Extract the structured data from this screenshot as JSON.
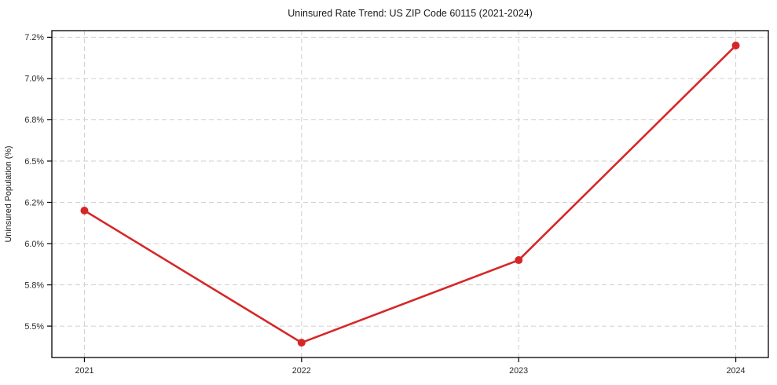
{
  "chart_data": {
    "type": "line",
    "title": "Uninsured Rate Trend: US ZIP Code 60115 (2021-2024)",
    "xlabel": "",
    "ylabel": "Uninsured Population (%)",
    "x": [
      2021,
      2022,
      2023,
      2024
    ],
    "values": [
      6.2,
      5.4,
      5.9,
      7.2
    ],
    "x_ticks": {
      "values": [
        2021,
        2022,
        2023,
        2024
      ],
      "labels": [
        "2021",
        "2022",
        "2023",
        "2024"
      ]
    },
    "y_ticks": {
      "values": [
        5.5,
        5.75,
        6.0,
        6.25,
        6.5,
        6.75,
        7.0,
        7.25
      ],
      "labels": [
        "5.5%",
        "5.8%",
        "6.0%",
        "6.2%",
        "6.5%",
        "6.8%",
        "7.0%",
        "7.2%"
      ]
    },
    "xlim": [
      2020.85,
      2024.15
    ],
    "ylim": [
      5.31,
      7.29
    ],
    "grid": true,
    "grid_style": "dashed",
    "legend_position": "none",
    "line_color": "#d62728",
    "marker": "circle",
    "marker_color": "#d62728",
    "grid_color": "#cfcfcf",
    "spine_color": "#000000",
    "background_color": "#ffffff"
  }
}
